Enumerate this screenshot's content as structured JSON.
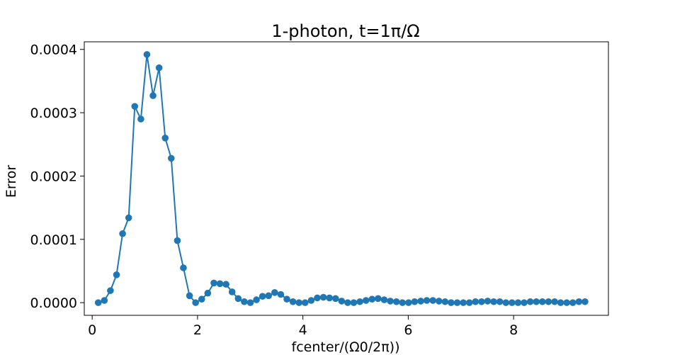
{
  "chart_data": {
    "type": "line",
    "title": "1-photon, t=1π/Ω",
    "xlabel": "fcenter/(Ω0/2π))",
    "ylabel": "Error",
    "xlim": [
      -0.15,
      9.8
    ],
    "ylim": [
      -2e-05,
      0.000412
    ],
    "xticks": [
      0,
      2,
      4,
      6,
      8
    ],
    "xtick_labels": [
      "0",
      "2",
      "4",
      "6",
      "8"
    ],
    "yticks": [
      0.0,
      0.0001,
      0.0002,
      0.0003,
      0.0004
    ],
    "ytick_labels": [
      "0.0000",
      "0.0001",
      "0.0002",
      "0.0003",
      "0.0004"
    ],
    "grid": false,
    "color": "#1f77b4",
    "series": [
      {
        "x": [
          0.115,
          0.231,
          0.346,
          0.462,
          0.577,
          0.693,
          0.808,
          0.924,
          1.039,
          1.155,
          1.27,
          1.386,
          1.501,
          1.617,
          1.732,
          1.848,
          1.963,
          2.079,
          2.194,
          2.31,
          2.425,
          2.541,
          2.656,
          2.772,
          2.887,
          3.003,
          3.118,
          3.234,
          3.349,
          3.465,
          3.58,
          3.696,
          3.811,
          3.927,
          4.042,
          4.158,
          4.273,
          4.389,
          4.504,
          4.62,
          4.735,
          4.851,
          4.966,
          5.082,
          5.197,
          5.313,
          5.428,
          5.544,
          5.659,
          5.775,
          5.89,
          6.006,
          6.121,
          6.237,
          6.352,
          6.468,
          6.583,
          6.699,
          6.814,
          6.93,
          7.045,
          7.161,
          7.276,
          7.392,
          7.507,
          7.623,
          7.738,
          7.854,
          7.969,
          8.085,
          8.2,
          8.316,
          8.431,
          8.547,
          8.662,
          8.778,
          8.893,
          9.009,
          9.124,
          9.24,
          9.355
        ],
        "values": [
          0.0,
          3.5e-06,
          1.9e-05,
          4.4e-05,
          0.000109,
          0.000134,
          0.00031,
          0.00029,
          0.000392,
          0.000327,
          0.000371,
          0.00026,
          0.000228,
          9.8e-05,
          5.5e-05,
          1.1e-05,
          0.0,
          5.5e-06,
          1.5e-05,
          3.1e-05,
          3e-05,
          2.9e-05,
          1.7e-05,
          6.5e-06,
          1.5e-06,
          0.0,
          4.5e-06,
          1e-05,
          1.1e-05,
          1.6e-05,
          1.3e-05,
          5.5e-06,
          1.5e-06,
          0.0,
          0.0,
          3.5e-06,
          7.5e-06,
          8.5e-06,
          7.5e-06,
          6.5e-06,
          2.5e-06,
          0.0,
          0.0,
          1.5e-06,
          3.5e-06,
          5.5e-06,
          6.5e-06,
          4.5e-06,
          2.5e-06,
          1.5e-06,
          0.0,
          0.0,
          1.5e-06,
          2.5e-06,
          3.5e-06,
          3.5e-06,
          2.5e-06,
          1.5e-06,
          0.0,
          0.0,
          0.0,
          0.0,
          1.5e-06,
          1.5e-06,
          2.5e-06,
          1.5e-06,
          1.5e-06,
          0.0,
          0.0,
          0.0,
          0.0,
          1.5e-06,
          1.5e-06,
          1.5e-06,
          1.5e-06,
          1.5e-06,
          0.0,
          0.0,
          0.0,
          1.5e-06,
          1.5e-06
        ]
      }
    ]
  }
}
